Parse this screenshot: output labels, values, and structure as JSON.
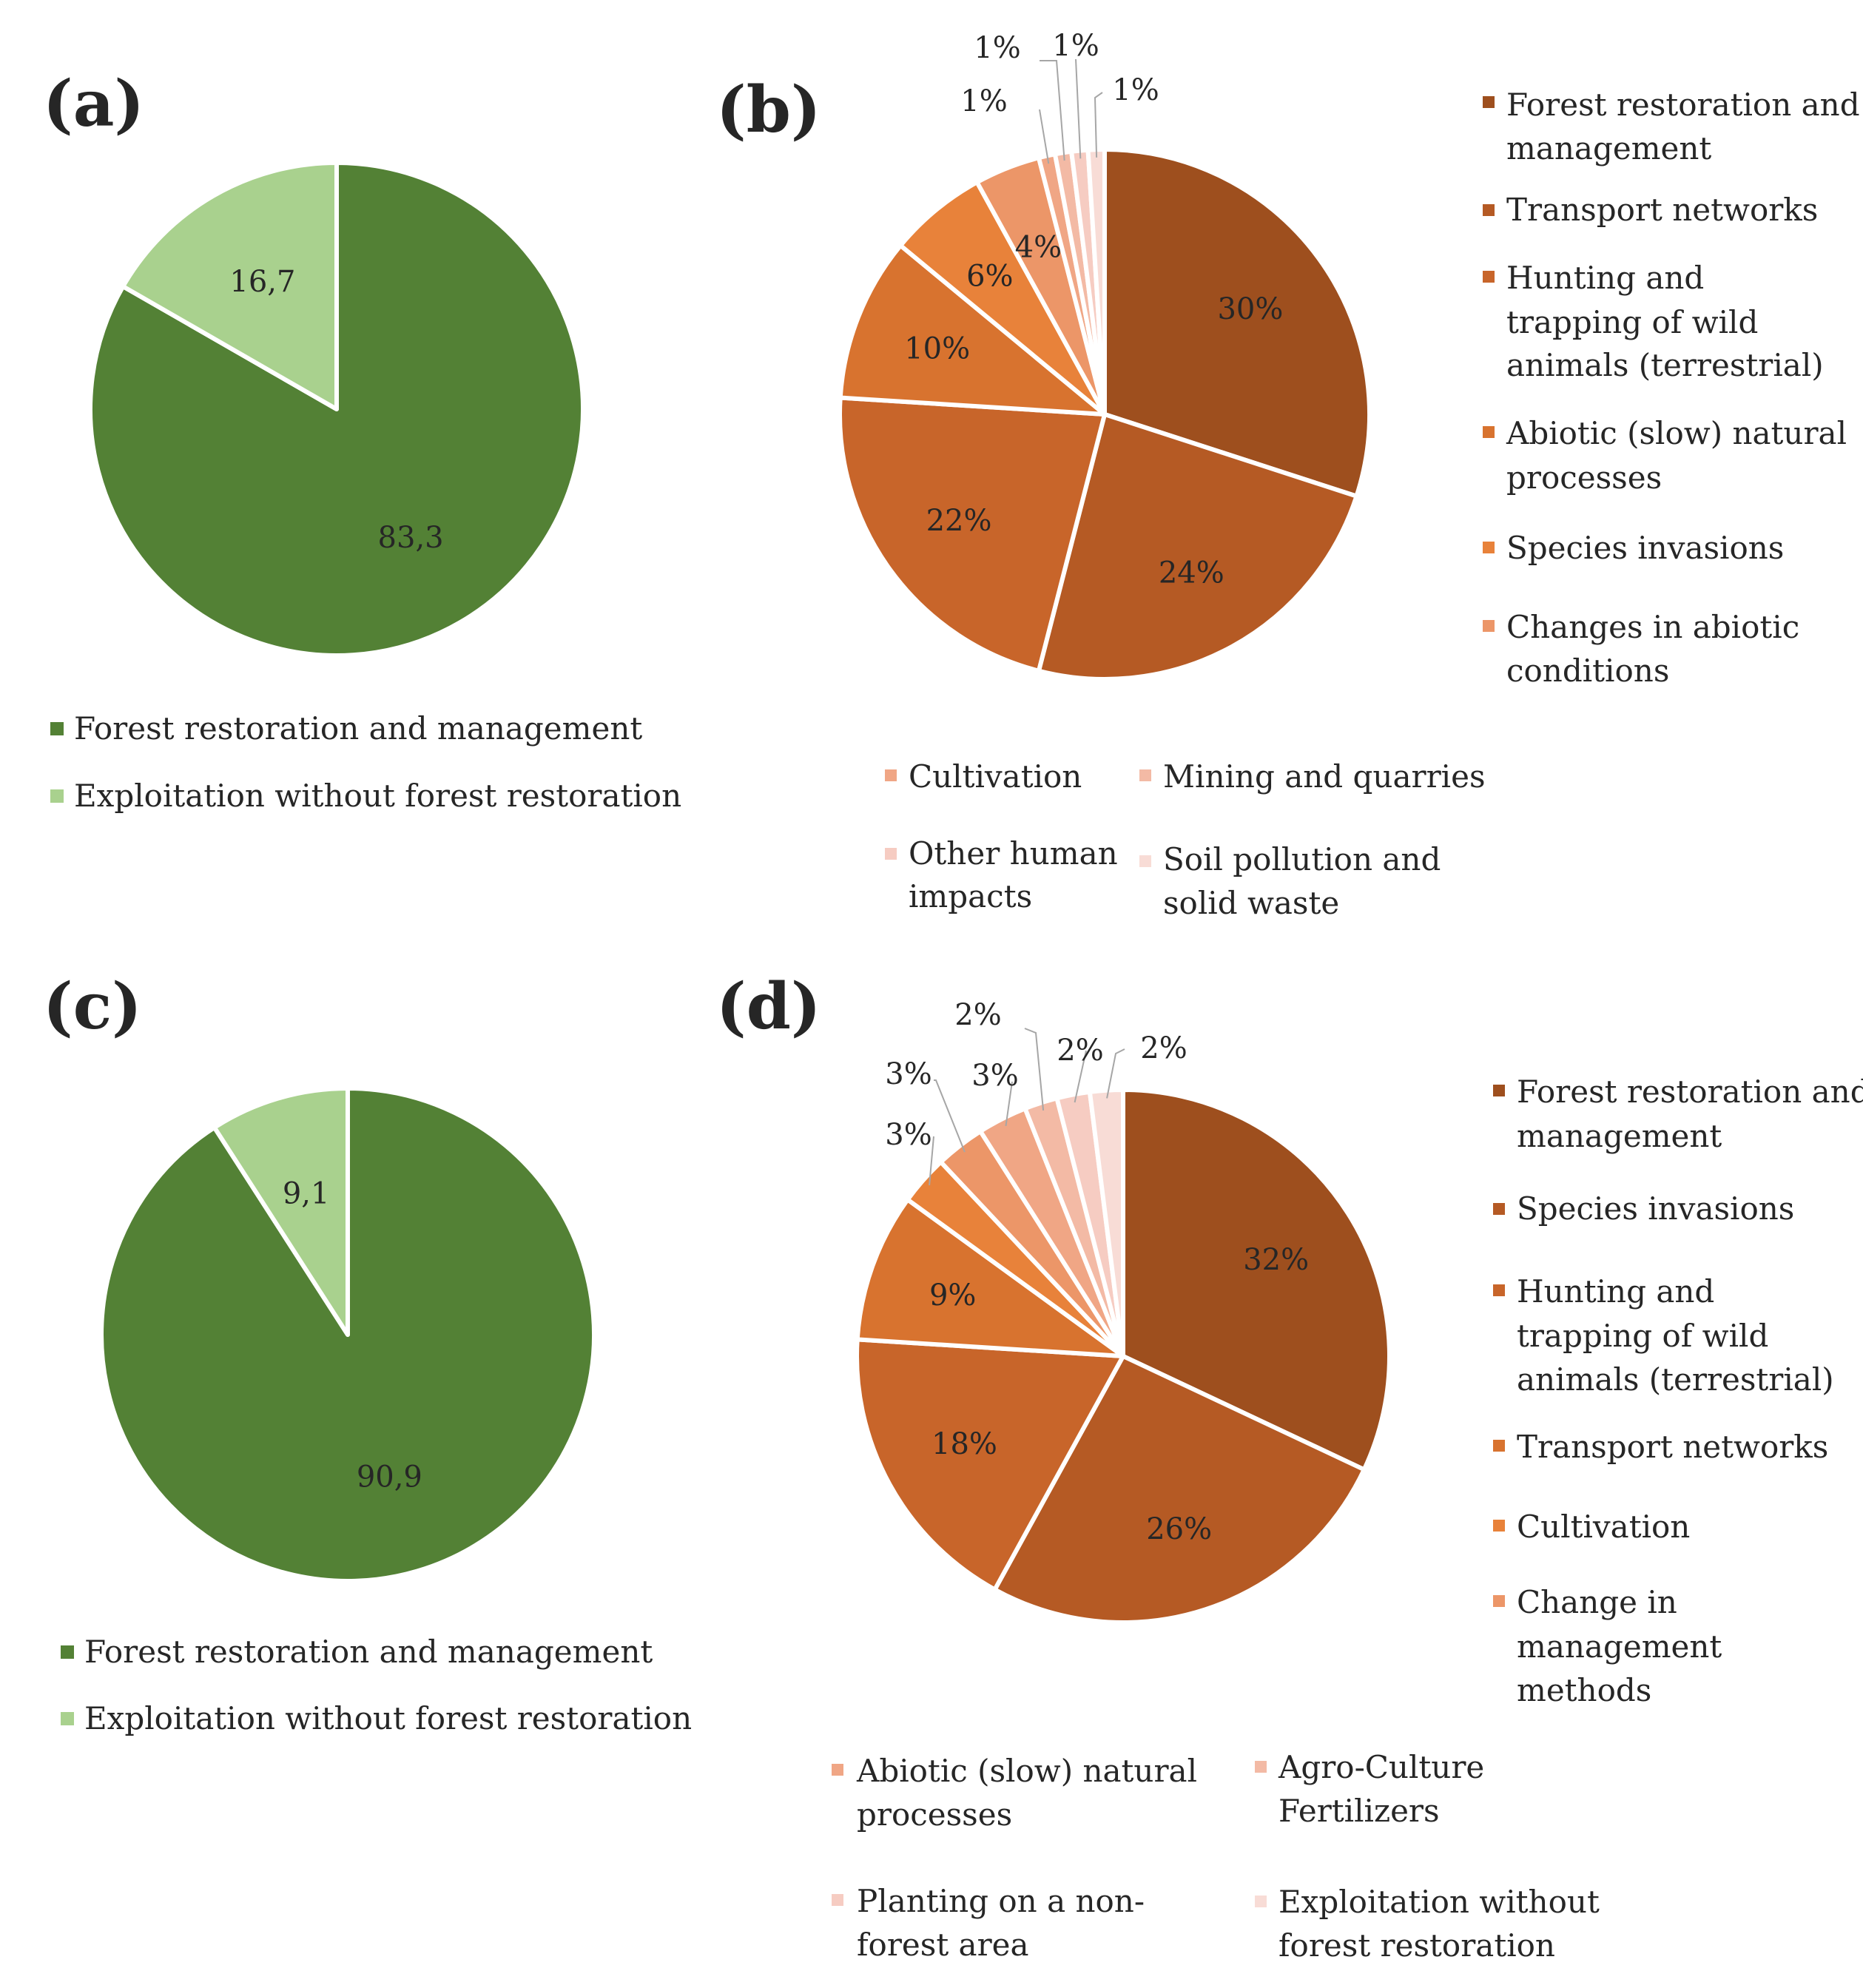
{
  "figure": {
    "colors": {
      "forest_green": "#538135",
      "light_green": "#a9d18e"
    }
  },
  "chart_data": [
    {
      "panel": "(a)",
      "type": "pie",
      "labels": [
        "Forest restoration and management",
        "Exploitation without forest restoration"
      ],
      "values": [
        83.3,
        16.7
      ],
      "slice_labels": [
        "83,3",
        "16,7"
      ],
      "colors": [
        "#538135",
        "#a9d18e"
      ],
      "legend_position": "bottom"
    },
    {
      "panel": "(b)",
      "type": "pie",
      "labels": [
        "Forest restoration and management",
        "Transport networks",
        "Hunting and trapping of wild animals (terrestrial)",
        "Abiotic (slow) natural processes",
        "Species invasions",
        "Changes in abiotic conditions",
        "Cultivation",
        "Mining and quarries",
        "Other human impacts",
        "Soil pollution and solid waste"
      ],
      "values": [
        30,
        24,
        22,
        10,
        6,
        4,
        1,
        1,
        1,
        1
      ],
      "slice_labels": [
        "30%",
        "24%",
        "22%",
        "10%",
        "6%",
        "4%",
        "1%",
        "1%",
        "1%",
        "1%"
      ],
      "colors": [
        "#9e4f1e",
        "#b55a24",
        "#c8652a",
        "#d8732f",
        "#e8823a",
        "#ec9668",
        "#f0a685",
        "#f3baa5",
        "#f6ccc2",
        "#f8dcd6"
      ],
      "legend_position": "right, bottom"
    },
    {
      "panel": "(c)",
      "type": "pie",
      "labels": [
        "Forest restoration and management",
        "Exploitation without forest restoration"
      ],
      "values": [
        90.9,
        9.1
      ],
      "slice_labels": [
        "90,9",
        "9,1"
      ],
      "colors": [
        "#538135",
        "#a9d18e"
      ],
      "legend_position": "bottom"
    },
    {
      "panel": "(d)",
      "type": "pie",
      "labels": [
        "Forest restoration and management",
        "Species invasions",
        "Hunting and trapping of wild animals (terrestrial)",
        "Transport networks",
        "Cultivation",
        "Change in management methods",
        "Abiotic (slow) natural processes",
        "Agro-Culture Fertilizers",
        "Planting on a non-forest area",
        "Exploitation without forest restoration"
      ],
      "values": [
        32,
        26,
        18,
        9,
        3,
        3,
        3,
        2,
        2,
        2
      ],
      "slice_labels": [
        "32%",
        "26%",
        "18%",
        "9%",
        "3%",
        "3%",
        "3%",
        "2%",
        "2%",
        "2%"
      ],
      "colors": [
        "#9e4f1e",
        "#b55a24",
        "#c8652a",
        "#d8732f",
        "#e8823a",
        "#ec9668",
        "#f0a685",
        "#f3baa5",
        "#f6ccc2",
        "#f8dcd6"
      ],
      "legend_position": "right, bottom"
    }
  ],
  "legends": {
    "a": [
      "Forest restoration and management",
      "Exploitation without forest restoration"
    ],
    "b": [
      "Forest restoration and",
      "management",
      "Transport networks",
      "Hunting and",
      "trapping of wild",
      "animals (terrestrial)",
      "Abiotic (slow) natural",
      "processes",
      "Species invasions",
      "Changes in abiotic",
      "conditions",
      "Cultivation",
      "Mining and quarries",
      "Other human",
      "impacts",
      "Soil pollution and",
      "solid waste"
    ],
    "c": [
      "Forest restoration and management",
      "Exploitation without forest restoration"
    ],
    "d": [
      "Forest restoration and",
      "management",
      "Species invasions",
      "Hunting and",
      "trapping of wild",
      "animals (terrestrial)",
      "Transport networks",
      "Cultivation",
      "Change in",
      "management",
      "methods",
      "Abiotic (slow) natural",
      "processes",
      "Agro-Culture",
      "Fertilizers",
      "Planting on a non-",
      "forest area",
      "Exploitation without",
      "forest restoration"
    ]
  }
}
